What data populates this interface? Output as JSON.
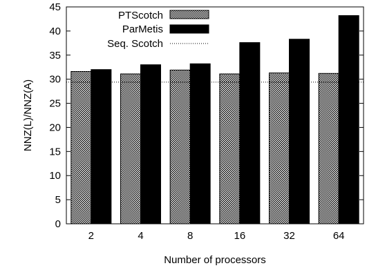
{
  "chart_data": {
    "type": "bar",
    "title": "",
    "xlabel": "Number of processors",
    "ylabel": "NNZ(L)/NNZ(A)",
    "ylim": [
      0,
      45
    ],
    "yticks": [
      0,
      5,
      10,
      15,
      20,
      25,
      30,
      35,
      40,
      45
    ],
    "categories": [
      "2",
      "4",
      "8",
      "16",
      "32",
      "64"
    ],
    "series": [
      {
        "name": "PTScotch",
        "values": [
          31.6,
          31.1,
          31.9,
          31.1,
          31.3,
          31.2
        ]
      },
      {
        "name": "ParMetis",
        "values": [
          32.0,
          33.0,
          33.2,
          37.6,
          38.3,
          43.2
        ]
      }
    ],
    "reference_line": {
      "name": "Seq. Scotch",
      "value": 29.4
    },
    "legend_position": "top-left",
    "grid": false
  }
}
